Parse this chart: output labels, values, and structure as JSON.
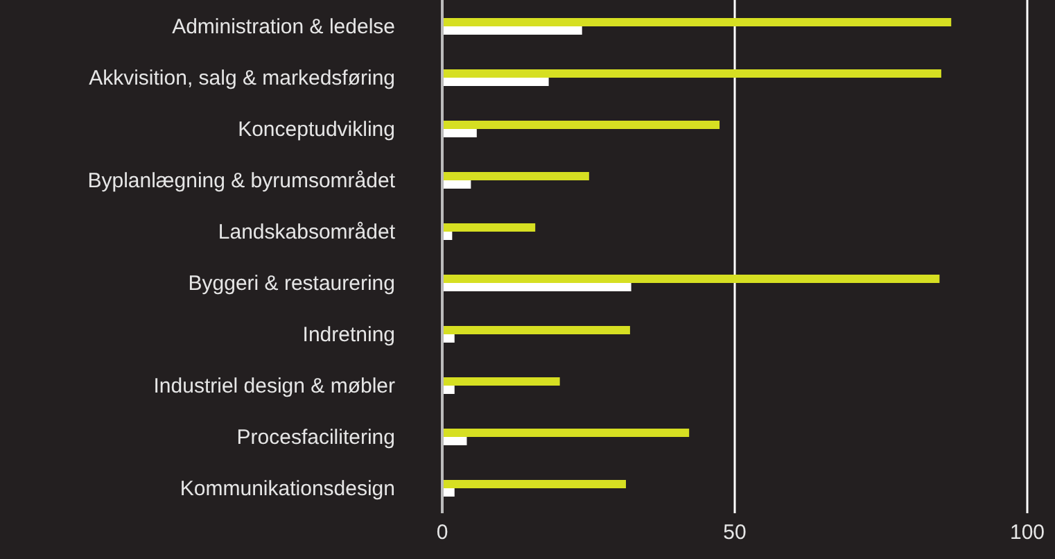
{
  "chart_data": {
    "type": "bar",
    "orientation": "horizontal",
    "categories": [
      "Administration & ledelse",
      "Akkvisition, salg & markedsføring",
      "Konceptudvikling",
      "Byplanlægning & byrumsområdet",
      "Landskabsområdet",
      "Byggeri & restaurering",
      "Indretning",
      "Industriel design & møbler",
      "Procesfacilitering",
      "Kommunikationsdesign"
    ],
    "series": [
      {
        "color": "#d6df22",
        "values": [
          87,
          85.3,
          47.4,
          25.1,
          15.9,
          85,
          32.1,
          20.1,
          42.2,
          31.4
        ]
      },
      {
        "color": "#ffffff",
        "values": [
          23.9,
          18.2,
          5.9,
          4.9,
          1.7,
          32.3,
          2.1,
          2.1,
          4.2,
          2.1
        ]
      }
    ],
    "xlim": [
      0,
      100
    ],
    "xticks": [
      0,
      50,
      100
    ],
    "grid": "x",
    "legend": false
  }
}
